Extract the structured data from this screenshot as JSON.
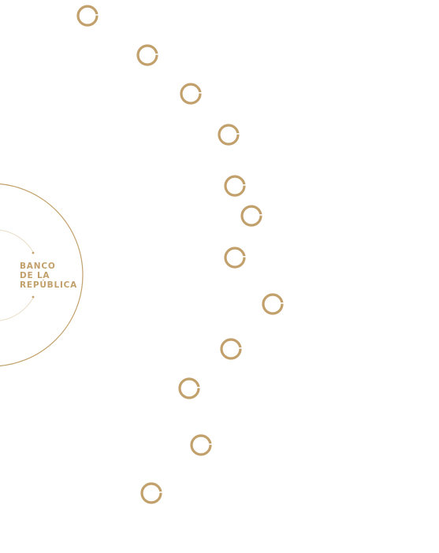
{
  "logo": {
    "name": "Banco de la República",
    "lines": [
      "BANCO",
      "DE LA",
      "REPÚBLICA"
    ]
  },
  "nav": {
    "node_count": 12
  },
  "colors": {
    "accent": "#c2a06b",
    "background": "#ffffff",
    "inner_arc": "#e8dcc6"
  },
  "icons": {
    "nav_node": "ring-icon",
    "big_arc": "arc-decoration",
    "small_arc": "inner-arc-decoration"
  }
}
